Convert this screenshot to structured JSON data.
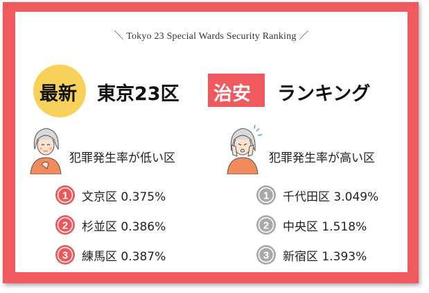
{
  "subtitle": "＼ Tokyo 23 Special Wards Security Ranking ／",
  "title": {
    "latest": "最新",
    "tokyo": "東京23区",
    "safety": "治安",
    "ranking": "ランキング"
  },
  "low": {
    "heading": "犯罪発生率が低い区",
    "items": [
      {
        "rank": "1",
        "text": "文京区 0.375%"
      },
      {
        "rank": "2",
        "text": "杉並区 0.386%"
      },
      {
        "rank": "3",
        "text": "練馬区 0.387%"
      }
    ]
  },
  "high": {
    "heading": "犯罪発生率が高い区",
    "items": [
      {
        "rank": "1",
        "text": "千代田区 3.049%"
      },
      {
        "rank": "2",
        "text": "中央区 1.518%"
      },
      {
        "rank": "3",
        "text": "新宿区 1.393%"
      }
    ]
  },
  "colors": {
    "frame": "#f05a5e",
    "yellow": "#f8d15b",
    "badge_red": "#ef5659",
    "badge_gray": "#a9a9a9"
  }
}
